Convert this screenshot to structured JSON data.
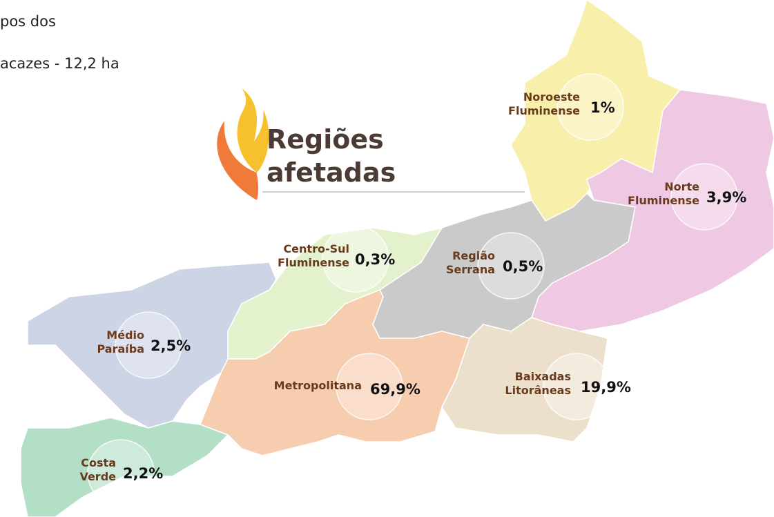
{
  "header": {
    "lines": [
      "pos dos",
      "acazes - 12,2 ha"
    ]
  },
  "title": [
    "Regiões",
    "afetadas"
  ],
  "regions": [
    {
      "name": [
        "Noroeste",
        "Fluminense"
      ],
      "share": "1%"
    },
    {
      "name": [
        "Norte",
        "Fluminense"
      ],
      "share": "3,9%"
    },
    {
      "name": [
        "Centro-Sul",
        "Fluminense"
      ],
      "share": "0,3%"
    },
    {
      "name": [
        "Região",
        "Serrana"
      ],
      "share": "0,5%"
    },
    {
      "name": [
        "Médio",
        "Paraíba"
      ],
      "share": "2,5%"
    },
    {
      "name": [
        "Metropolitana"
      ],
      "share": "69,9%"
    },
    {
      "name": [
        "Baixadas",
        "Litorâneas"
      ],
      "share": "19,9%"
    },
    {
      "name": [
        "Costa",
        "Verde"
      ],
      "share": "2,2%"
    }
  ]
}
